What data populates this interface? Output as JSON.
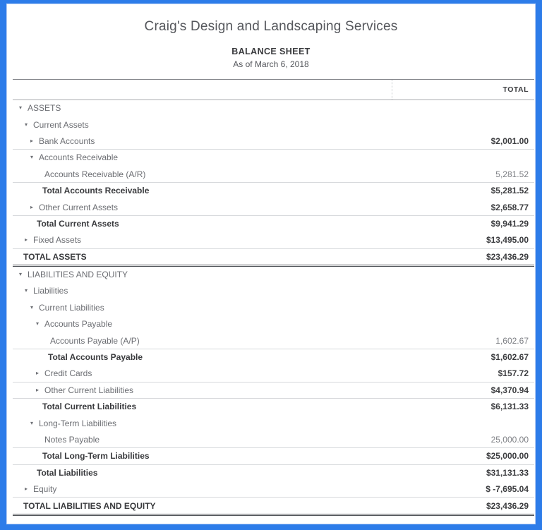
{
  "report": {
    "company": "Craig's Design and Landscaping Services",
    "title": "BALANCE SHEET",
    "subtitle": "As of March 6, 2018",
    "column_header": "TOTAL",
    "colors": {
      "accent_border": "#2d7ce9",
      "text_dark": "#393a3d",
      "text_gray": "#6b6d72",
      "line_light": "#d7d9dc",
      "line_dark": "#515459"
    },
    "icons": {
      "expanded": "▾",
      "collapsed": "▸"
    },
    "rows": [
      {
        "label": "ASSETS",
        "value": "",
        "level": 0,
        "arrow": "down",
        "kind": "section",
        "border": "none"
      },
      {
        "label": "Current Assets",
        "value": "",
        "level": 1,
        "arrow": "down",
        "kind": "section",
        "border": "none"
      },
      {
        "label": "Bank Accounts",
        "value": "$2,001.00",
        "level": 2,
        "arrow": "right",
        "kind": "section",
        "border": "single"
      },
      {
        "label": "Accounts Receivable",
        "value": "",
        "level": 2,
        "arrow": "down",
        "kind": "section",
        "border": "none"
      },
      {
        "label": "Accounts Receivable (A/R)",
        "value": "5,281.52",
        "level": 3,
        "arrow": "none",
        "kind": "leaf",
        "border": "single"
      },
      {
        "label": "Total Accounts Receivable",
        "value": "$5,281.52",
        "level": 3,
        "arrow": "none",
        "kind": "subtotal",
        "border": "none"
      },
      {
        "label": "Other Current Assets",
        "value": "$2,658.77",
        "level": 2,
        "arrow": "right",
        "kind": "section",
        "border": "single"
      },
      {
        "label": "Total Current Assets",
        "value": "$9,941.29",
        "level": 2,
        "arrow": "none",
        "kind": "subtotal",
        "border": "none"
      },
      {
        "label": "Fixed Assets",
        "value": "$13,495.00",
        "level": 1,
        "arrow": "right",
        "kind": "section",
        "border": "single"
      },
      {
        "label": "TOTAL ASSETS",
        "value": "$23,436.29",
        "level": 0,
        "arrow": "none",
        "kind": "grand",
        "border": "double"
      },
      {
        "label": "LIABILITIES AND EQUITY",
        "value": "",
        "level": 0,
        "arrow": "down",
        "kind": "section",
        "border": "none"
      },
      {
        "label": "Liabilities",
        "value": "",
        "level": 1,
        "arrow": "down",
        "kind": "section",
        "border": "none"
      },
      {
        "label": "Current Liabilities",
        "value": "",
        "level": 2,
        "arrow": "down",
        "kind": "section",
        "border": "none"
      },
      {
        "label": "Accounts Payable",
        "value": "",
        "level": 3,
        "arrow": "down",
        "kind": "section",
        "border": "none"
      },
      {
        "label": "Accounts Payable (A/P)",
        "value": "1,602.67",
        "level": 4,
        "arrow": "none",
        "kind": "leaf",
        "border": "single"
      },
      {
        "label": "Total Accounts Payable",
        "value": "$1,602.67",
        "level": 4,
        "arrow": "none",
        "kind": "subtotal",
        "border": "none"
      },
      {
        "label": "Credit Cards",
        "value": "$157.72",
        "level": 3,
        "arrow": "right",
        "kind": "section",
        "border": "single"
      },
      {
        "label": "Other Current Liabilities",
        "value": "$4,370.94",
        "level": 3,
        "arrow": "right",
        "kind": "section",
        "border": "single"
      },
      {
        "label": "Total Current Liabilities",
        "value": "$6,131.33",
        "level": 3,
        "arrow": "none",
        "kind": "subtotal",
        "border": "none"
      },
      {
        "label": "Long-Term Liabilities",
        "value": "",
        "level": 2,
        "arrow": "down",
        "kind": "section",
        "border": "none"
      },
      {
        "label": "Notes Payable",
        "value": "25,000.00",
        "level": 3,
        "arrow": "none",
        "kind": "leaf",
        "border": "single"
      },
      {
        "label": "Total Long-Term Liabilities",
        "value": "$25,000.00",
        "level": 3,
        "arrow": "none",
        "kind": "subtotal",
        "border": "single"
      },
      {
        "label": "Total Liabilities",
        "value": "$31,131.33",
        "level": 2,
        "arrow": "none",
        "kind": "subtotal",
        "border": "none"
      },
      {
        "label": "Equity",
        "value": "$ -7,695.04",
        "level": 1,
        "arrow": "right",
        "kind": "section",
        "border": "single"
      },
      {
        "label": "TOTAL LIABILITIES AND EQUITY",
        "value": "$23,436.29",
        "level": 0,
        "arrow": "none",
        "kind": "grand",
        "border": "double"
      }
    ]
  }
}
